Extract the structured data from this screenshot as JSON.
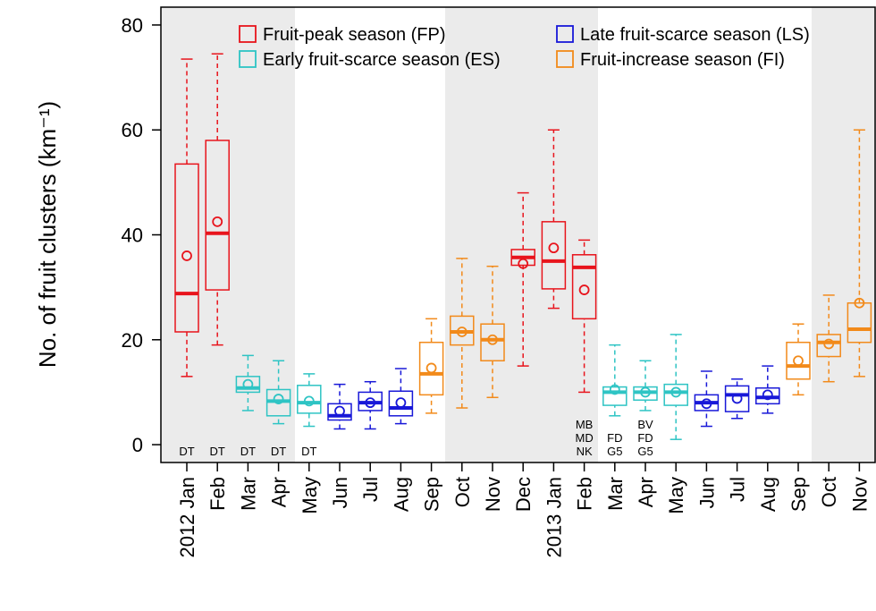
{
  "chart_data": {
    "type": "box",
    "ylabel": "No. of fruit clusters (km⁻¹)",
    "categories": [
      "2012 Jan",
      "Feb",
      "Mar",
      "Apr",
      "May",
      "Jun",
      "Jul",
      "Aug",
      "Sep",
      "Oct",
      "Nov",
      "Dec",
      "2013 Jan",
      "Feb",
      "Mar",
      "Apr",
      "May",
      "Jun",
      "Jul",
      "Aug",
      "Sep",
      "Oct",
      "Nov"
    ],
    "ylim": [
      -3.4,
      83.4
    ],
    "yticks": [
      0,
      20,
      40,
      60,
      80
    ],
    "series": [
      {
        "name": "Fruit-peak season (FP)",
        "color": "#e8141c",
        "data": [
          {
            "min": 13,
            "q1": 21.5,
            "median": 28.8,
            "q3": 53.5,
            "max": 73.5,
            "mean": 36
          },
          {
            "min": 19,
            "q1": 29.5,
            "median": 40.3,
            "q3": 58,
            "max": 74.5,
            "mean": 42.5
          },
          null,
          null,
          null,
          null,
          null,
          null,
          null,
          null,
          null,
          {
            "min": 15,
            "q1": 34.2,
            "median": 35.7,
            "q3": 37.2,
            "max": 48,
            "mean": 34.5
          },
          {
            "min": 26,
            "q1": 29.7,
            "median": 35,
            "q3": 42.5,
            "max": 60,
            "mean": 37.5
          },
          {
            "min": 10,
            "q1": 24,
            "median": 33.8,
            "q3": 36.2,
            "max": 39,
            "mean": 29.5
          },
          null,
          null,
          null,
          null,
          null,
          null,
          null,
          null,
          null
        ]
      },
      {
        "name": "Early fruit-scarce season (ES)",
        "color": "#2ec4c4",
        "data": [
          null,
          null,
          {
            "min": 6.5,
            "q1": 10,
            "median": 10.8,
            "q3": 13,
            "max": 17,
            "mean": 11.5
          },
          {
            "min": 4,
            "q1": 5.5,
            "median": 8.3,
            "q3": 10.5,
            "max": 16,
            "mean": 8.7
          },
          {
            "min": 3.5,
            "q1": 6,
            "median": 8,
            "q3": 11.3,
            "max": 13.5,
            "mean": 8.3
          },
          null,
          null,
          null,
          null,
          null,
          null,
          null,
          null,
          null,
          {
            "min": 5.5,
            "q1": 7.5,
            "median": 10,
            "q3": 11,
            "max": 19,
            "mean": 10.5
          },
          {
            "min": 6.5,
            "q1": 8.5,
            "median": 10,
            "q3": 11,
            "max": 16,
            "mean": 10
          },
          {
            "min": 1,
            "q1": 7.5,
            "median": 10,
            "q3": 11.5,
            "max": 21,
            "mean": 10
          },
          null,
          null,
          null,
          null,
          null,
          null
        ]
      },
      {
        "name": "Late fruit-scarce season (LS)",
        "color": "#1818d8",
        "data": [
          null,
          null,
          null,
          null,
          null,
          {
            "min": 3,
            "q1": 4.7,
            "median": 5.5,
            "q3": 7.8,
            "max": 11.5,
            "mean": 6.4
          },
          {
            "min": 3,
            "q1": 6.5,
            "median": 8,
            "q3": 10,
            "max": 12,
            "mean": 8
          },
          {
            "min": 4,
            "q1": 5.5,
            "median": 7,
            "q3": 10.2,
            "max": 14.5,
            "mean": 8
          },
          null,
          null,
          null,
          null,
          null,
          null,
          null,
          null,
          null,
          {
            "min": 3.5,
            "q1": 6.5,
            "median": 8,
            "q3": 9.5,
            "max": 14,
            "mean": 7.8
          },
          {
            "min": 5,
            "q1": 6.3,
            "median": 9.5,
            "q3": 11.2,
            "max": 12.5,
            "mean": 8.8
          },
          {
            "min": 6,
            "q1": 7.8,
            "median": 9,
            "q3": 10.8,
            "max": 15,
            "mean": 9.5
          },
          null,
          null,
          null
        ]
      },
      {
        "name": "Fruit-increase season (FI)",
        "color": "#f28a1a",
        "data": [
          null,
          null,
          null,
          null,
          null,
          null,
          null,
          null,
          {
            "min": 6,
            "q1": 9.5,
            "median": 13.5,
            "q3": 19.5,
            "max": 24,
            "mean": 14.6
          },
          {
            "min": 7,
            "q1": 19,
            "median": 21.5,
            "q3": 24.5,
            "max": 35.5,
            "mean": 21.5
          },
          {
            "min": 9,
            "q1": 16,
            "median": 20,
            "q3": 23,
            "max": 34,
            "mean": 20
          },
          null,
          null,
          null,
          null,
          null,
          null,
          null,
          null,
          null,
          {
            "min": 9.5,
            "q1": 12.5,
            "median": 15,
            "q3": 19.5,
            "max": 23,
            "mean": 16
          },
          {
            "min": 12,
            "q1": 16.8,
            "median": 19.5,
            "q3": 21,
            "max": 28.5,
            "mean": 19.2
          },
          {
            "min": 13,
            "q1": 19.5,
            "median": 22,
            "q3": 27,
            "max": 60,
            "mean": 27
          }
        ]
      }
    ],
    "annotations": [
      [
        "DT"
      ],
      [
        "DT"
      ],
      [
        "DT"
      ],
      [
        "DT"
      ],
      [
        "DT"
      ],
      null,
      null,
      null,
      null,
      null,
      null,
      null,
      null,
      [
        "MB",
        "MD",
        "NK"
      ],
      [
        "FD",
        "G5"
      ],
      [
        "BV",
        "FD",
        "G5"
      ],
      null,
      null,
      null,
      null,
      null,
      null,
      null
    ]
  }
}
